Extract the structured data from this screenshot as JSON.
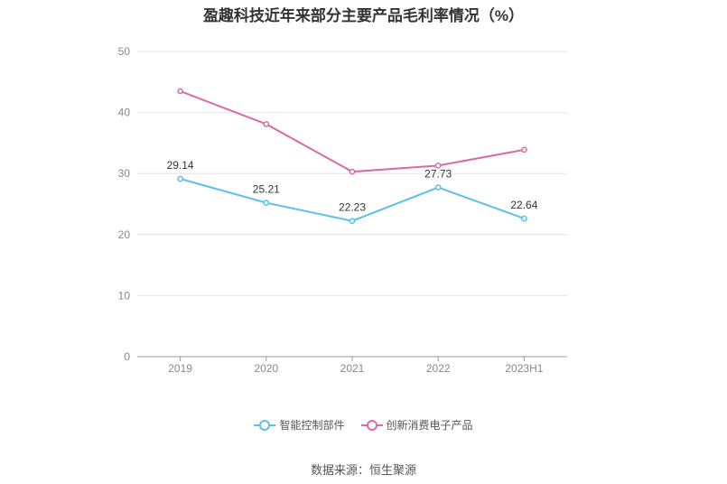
{
  "chart_data": {
    "type": "line",
    "title": "盈趣科技近年来部分主要产品毛利率情况（%）",
    "categories": [
      "2019",
      "2020",
      "2021",
      "2022",
      "2023H1"
    ],
    "ylim": [
      0,
      50
    ],
    "yticks": [
      0,
      10,
      20,
      30,
      40,
      50
    ],
    "grid": true,
    "legend_position": "bottom",
    "series": [
      {
        "name": "智能控制部件",
        "color": "#5bc0eb",
        "values": [
          29.14,
          25.21,
          22.23,
          27.73,
          22.64
        ],
        "show_labels": true
      },
      {
        "name": "创新消费电子产品",
        "color": "#d96aa8",
        "values": [
          43.5,
          38.1,
          30.3,
          31.3,
          33.9
        ],
        "show_labels": false
      }
    ],
    "source": "数据来源：恒生聚源"
  }
}
